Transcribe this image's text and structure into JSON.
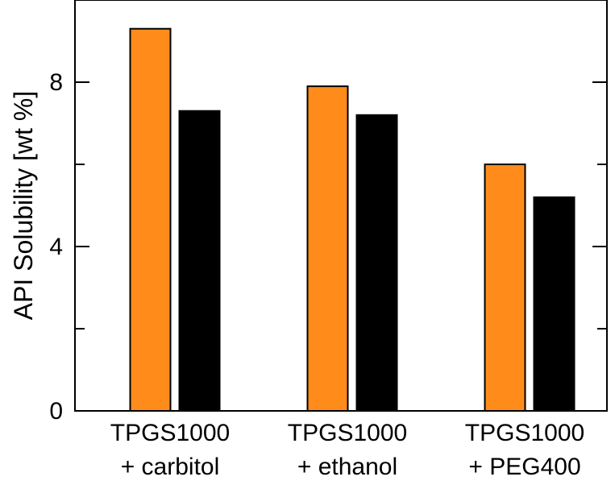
{
  "chart_data": {
    "type": "bar",
    "title": "",
    "xlabel": "",
    "ylabel": "API Solubility [wt %]",
    "ylim": [
      0,
      10
    ],
    "y_major_ticks": [
      0,
      4,
      8
    ],
    "y_minor_ticks": [
      2,
      6
    ],
    "y_tick_labels": [
      "0",
      "4",
      "8"
    ],
    "categories": [
      [
        "TPGS1000",
        "+ carbitol"
      ],
      [
        "TPGS1000",
        "+ ethanol"
      ],
      [
        "TPGS1000",
        "+ PEG400"
      ]
    ],
    "series": [
      {
        "color": "#ff8c1a",
        "values": [
          9.3,
          7.9,
          6.0
        ]
      },
      {
        "color": "#000000",
        "values": [
          7.3,
          7.2,
          5.2
        ]
      }
    ],
    "grid": false,
    "legend": "none"
  }
}
